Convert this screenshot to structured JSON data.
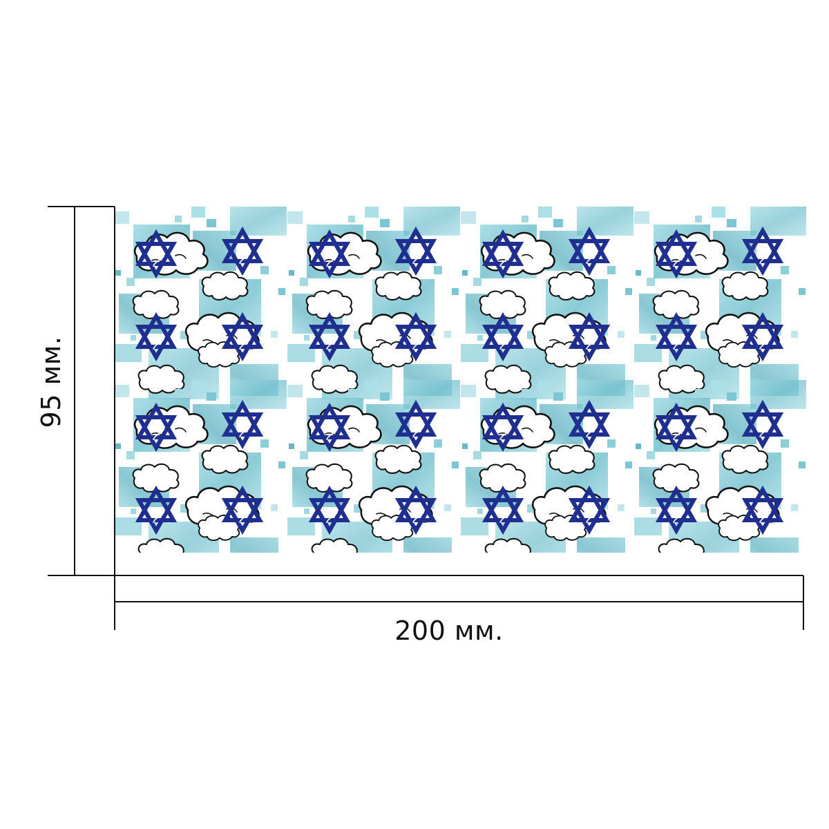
{
  "dimensions": {
    "width_label": "200 мм.",
    "height_label": "95 мм."
  },
  "pattern": {
    "motif_icon": "star-of-david-icon",
    "background_motif": "cloud-icon",
    "colors": {
      "star": "#1f2f8f",
      "cloud_line": "#111111",
      "tile_light": "#b9e3ea",
      "tile_mid": "#86cad6",
      "tile_dark": "#5eb8c8",
      "background": "#ffffff"
    }
  }
}
